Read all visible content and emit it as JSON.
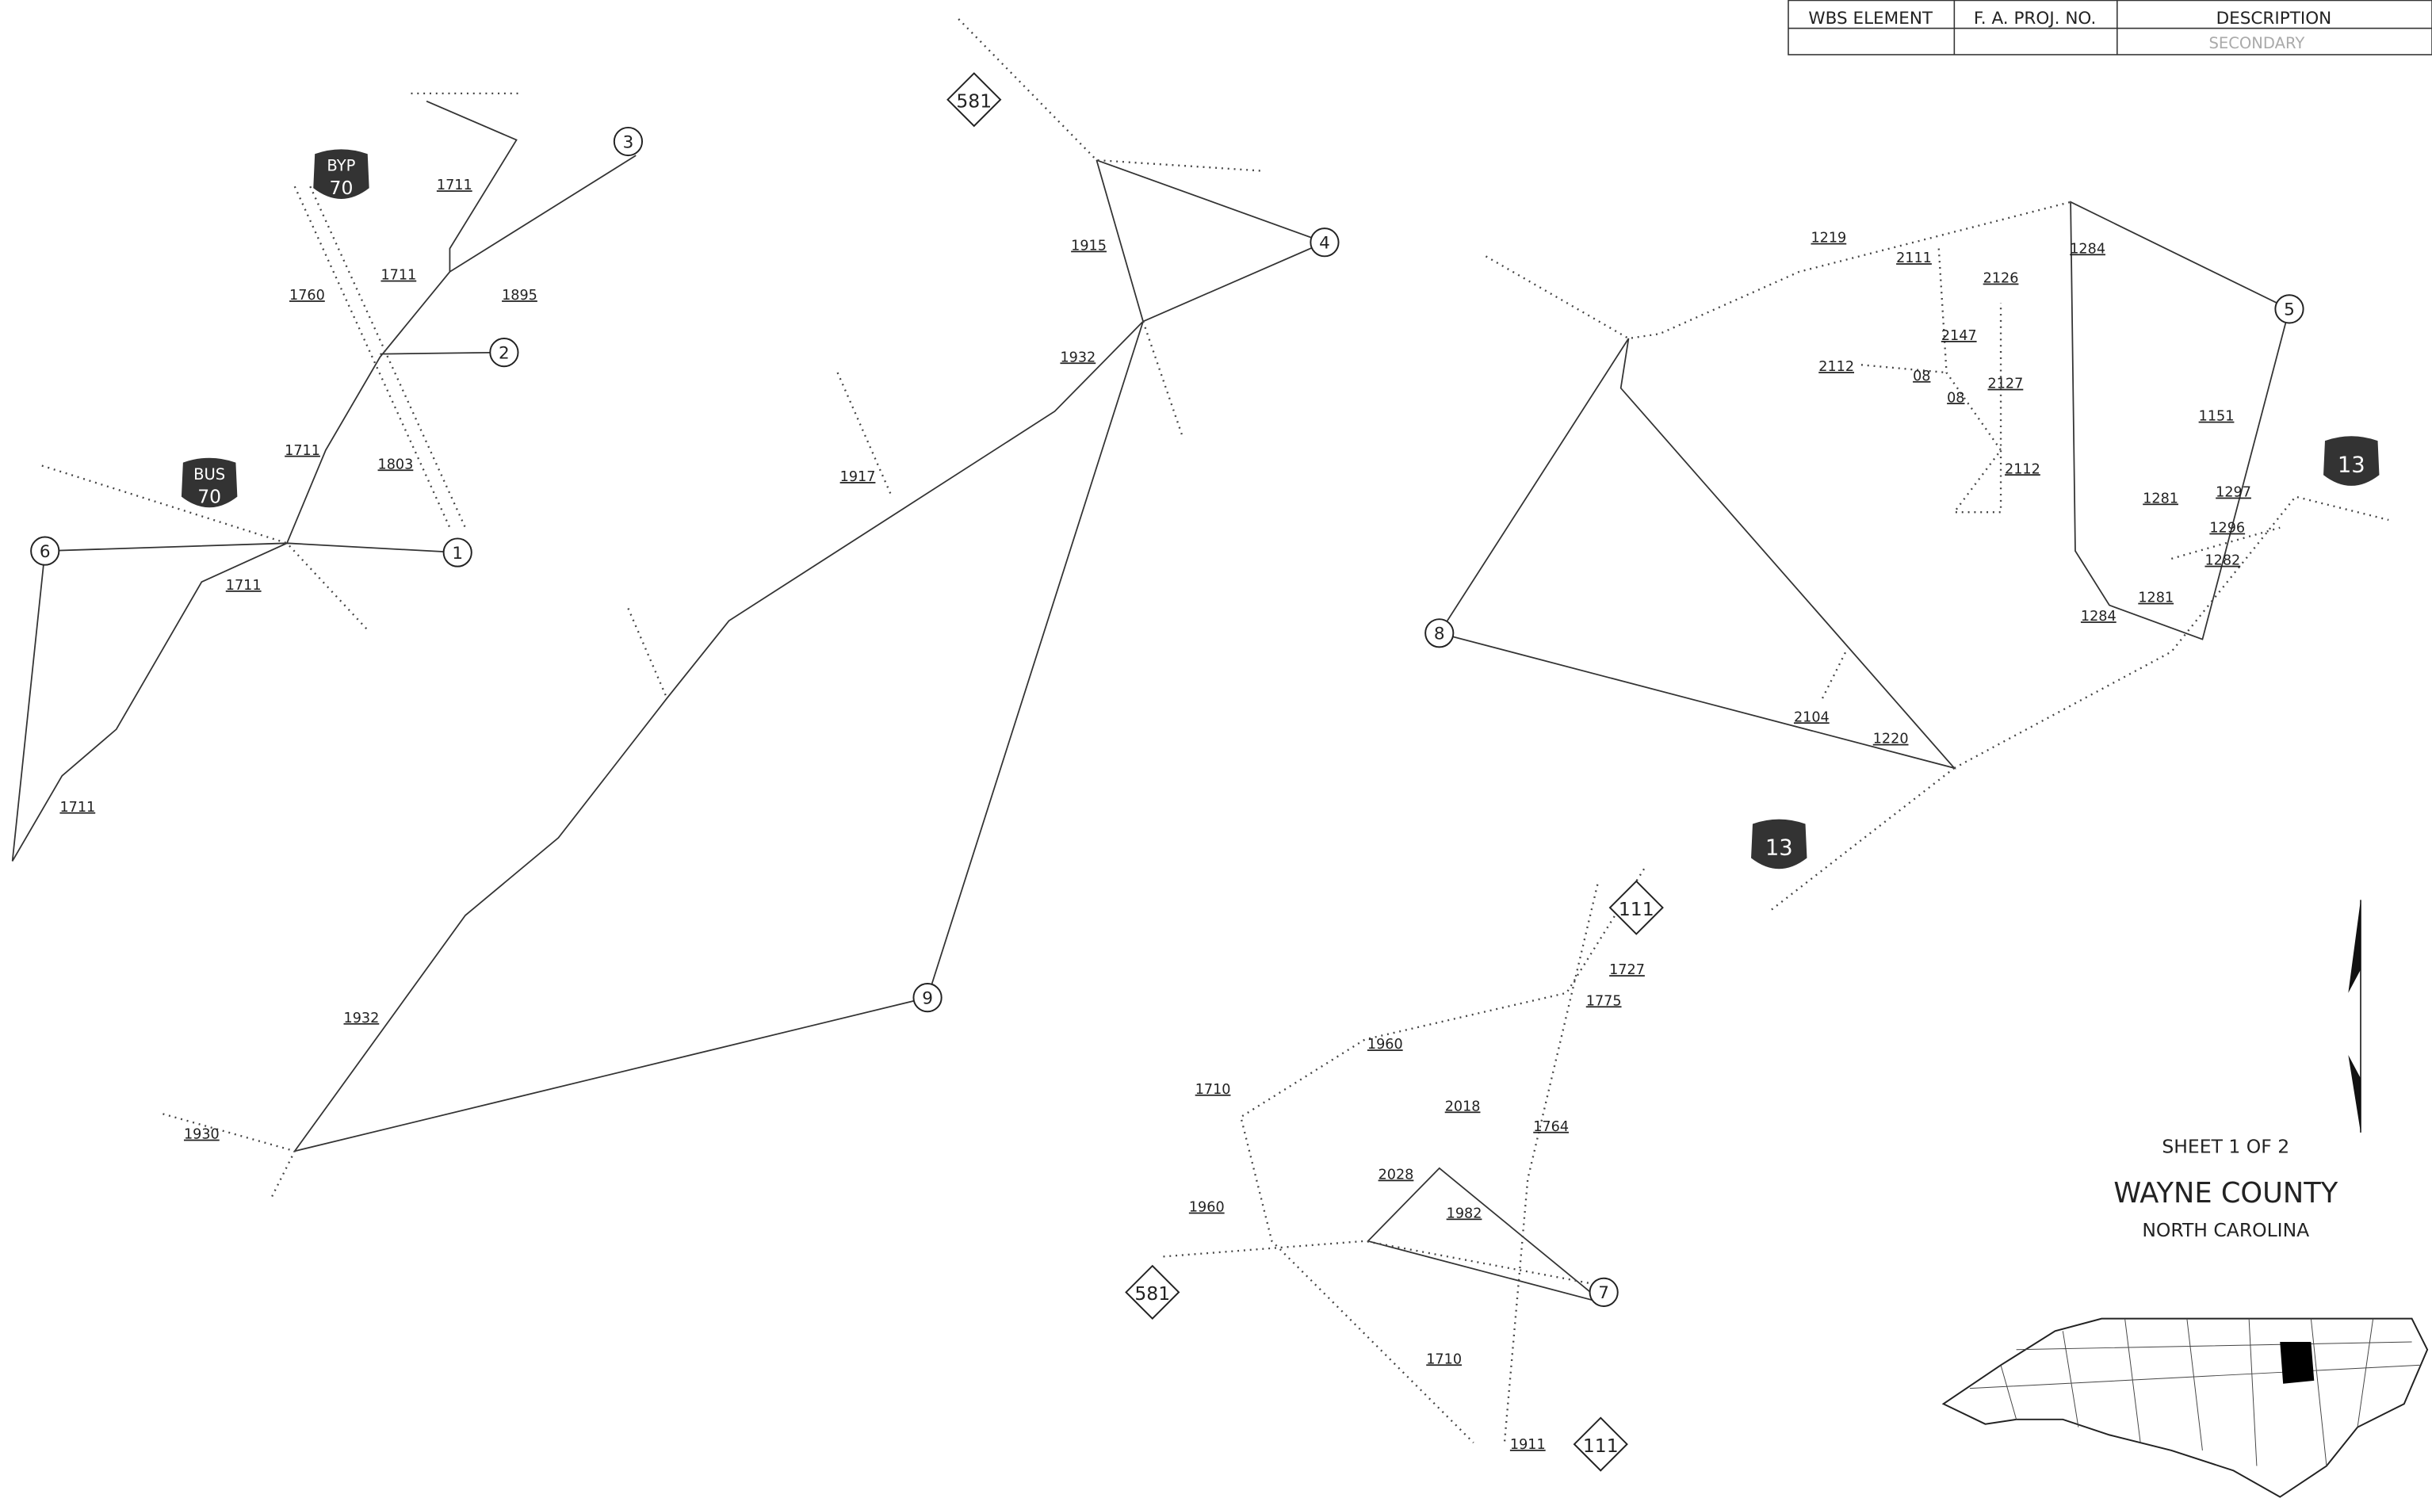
{
  "title_block": {
    "columns": [
      "WBS ELEMENT",
      "F. A. PROJ. NO.",
      "DESCRIPTION"
    ],
    "description_value": "SECONDARY"
  },
  "site_markers": [
    "1",
    "2",
    "3",
    "4",
    "5",
    "6",
    "7",
    "8",
    "9"
  ],
  "road_labels": [
    "1711",
    "1711",
    "1760",
    "1895",
    "1711",
    "1803",
    "1711",
    "1711",
    "1915",
    "1932",
    "1917",
    "1932",
    "1930",
    "1219",
    "2111",
    "2126",
    "1284",
    "2147",
    "2112",
    "2127",
    "08",
    "08",
    "2112",
    "1151",
    "1297",
    "1281",
    "1296",
    "1282",
    "1281",
    "1284",
    "2104",
    "1220",
    "1727",
    "1775",
    "1960",
    "1710",
    "2018",
    "1764",
    "2028",
    "1982",
    "1960",
    "1710",
    "1911"
  ],
  "us_shields": [
    {
      "type": "BYP",
      "number": "70"
    },
    {
      "type": "BUS",
      "number": "70"
    },
    {
      "number": "13"
    },
    {
      "number": "13"
    }
  ],
  "state_routes": [
    "581",
    "111",
    "581",
    "111"
  ],
  "sheet": {
    "sheet_number": "SHEET 1 OF 2",
    "county": "WAYNE COUNTY",
    "state": "NORTH CAROLINA"
  }
}
